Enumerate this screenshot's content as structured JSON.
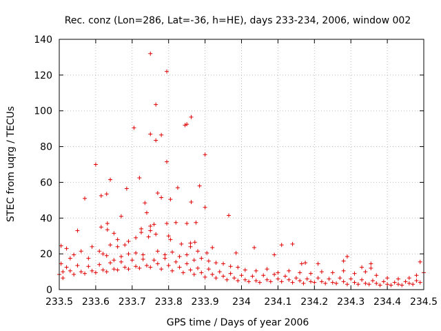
{
  "chart_data": {
    "type": "scatter",
    "title": "Rec. conz (Lon=286, Lat=-36, h=HE), days 233-234, 2006, window 002",
    "xlabel": "GPS time / Days of year 2006",
    "ylabel": "STEC from uqrg / TECUs",
    "xlim": [
      233.5,
      234.5
    ],
    "ylim": [
      0,
      140
    ],
    "x_ticks": [
      233.5,
      233.6,
      233.7,
      233.8,
      233.9,
      234.0,
      234.1,
      234.2,
      234.3,
      234.4,
      234.5
    ],
    "x_tick_labels": [
      "233.5",
      "233.6",
      "233.7",
      "233.8",
      "233.9",
      "234",
      "234.1",
      "234.2",
      "234.3",
      "234.4",
      "234.5"
    ],
    "y_ticks": [
      0,
      20,
      40,
      60,
      80,
      100,
      120,
      140
    ],
    "y_tick_labels": [
      "0",
      "20",
      "40",
      "60",
      "80",
      "100",
      "120",
      "140"
    ],
    "grid": true,
    "marker": "+",
    "marker_color": "#e00000",
    "series": [
      {
        "name": "STEC",
        "points": [
          [
            233.505,
            24.5
          ],
          [
            233.52,
            23.0
          ],
          [
            233.55,
            33.0
          ],
          [
            233.57,
            51.0
          ],
          [
            233.6,
            70.0
          ],
          [
            233.59,
            24.0
          ],
          [
            233.615,
            52.5
          ],
          [
            233.63,
            53.5
          ],
          [
            233.64,
            61.5
          ],
          [
            233.615,
            35.0
          ],
          [
            233.632,
            37.0
          ],
          [
            233.632,
            33.5
          ],
          [
            233.65,
            31.5
          ],
          [
            233.66,
            28.0
          ],
          [
            233.67,
            41.0
          ],
          [
            233.685,
            56.5
          ],
          [
            233.705,
            90.5
          ],
          [
            233.72,
            62.5
          ],
          [
            233.735,
            48.5
          ],
          [
            233.74,
            43.0
          ],
          [
            233.75,
            132.0
          ],
          [
            233.75,
            87.0
          ],
          [
            233.765,
            103.5
          ],
          [
            233.765,
            83.5
          ],
          [
            233.78,
            86.5
          ],
          [
            233.795,
            122.0
          ],
          [
            233.795,
            71.5
          ],
          [
            233.805,
            50.5
          ],
          [
            233.77,
            54.0
          ],
          [
            233.78,
            51.5
          ],
          [
            233.825,
            57.0
          ],
          [
            233.845,
            92.0
          ],
          [
            233.85,
            92.5
          ],
          [
            233.862,
            96.5
          ],
          [
            233.862,
            49.0
          ],
          [
            233.885,
            58.0
          ],
          [
            233.9,
            75.5
          ],
          [
            233.9,
            46.0
          ],
          [
            233.965,
            41.5
          ],
          [
            233.82,
            37.5
          ],
          [
            233.795,
            37.0
          ],
          [
            233.85,
            37.0
          ],
          [
            233.875,
            37.5
          ],
          [
            233.76,
            36.5
          ],
          [
            233.75,
            35.5
          ],
          [
            233.725,
            34.0
          ],
          [
            233.725,
            32.0
          ],
          [
            233.75,
            33.0
          ],
          [
            233.765,
            31.0
          ],
          [
            233.8,
            30.0
          ],
          [
            233.805,
            28.0
          ],
          [
            233.745,
            29.5
          ],
          [
            233.71,
            29.0
          ],
          [
            233.69,
            27.0
          ],
          [
            233.68,
            25.0
          ],
          [
            233.64,
            25.0
          ],
          [
            233.66,
            24.0
          ],
          [
            233.63,
            19.0
          ],
          [
            233.61,
            21.5
          ],
          [
            233.835,
            25.5
          ],
          [
            233.86,
            26.0
          ],
          [
            233.86,
            24.0
          ],
          [
            233.872,
            26.5
          ],
          [
            233.88,
            21.5
          ],
          [
            233.905,
            20.5
          ],
          [
            233.92,
            23.5
          ],
          [
            233.985,
            20.5
          ],
          [
            234.035,
            23.5
          ],
          [
            234.09,
            19.5
          ],
          [
            234.11,
            25.0
          ],
          [
            234.14,
            25.5
          ],
          [
            234.165,
            14.5
          ],
          [
            234.175,
            15.0
          ],
          [
            234.21,
            14.5
          ],
          [
            234.28,
            16.0
          ],
          [
            234.29,
            18.5
          ],
          [
            234.33,
            12.5
          ],
          [
            234.355,
            12.0
          ],
          [
            234.355,
            14.5
          ],
          [
            234.49,
            15.5
          ],
          [
            233.505,
            14.5
          ],
          [
            233.5,
            8.5
          ],
          [
            233.51,
            10.0
          ],
          [
            233.51,
            6.5
          ],
          [
            233.53,
            17.5
          ],
          [
            233.54,
            19.5
          ],
          [
            233.56,
            21.5
          ],
          [
            233.58,
            17.5
          ],
          [
            233.62,
            20.0
          ],
          [
            233.65,
            16.5
          ],
          [
            233.67,
            18.5
          ],
          [
            233.69,
            20.0
          ],
          [
            233.71,
            20.5
          ],
          [
            233.73,
            19.5
          ],
          [
            233.77,
            21.5
          ],
          [
            233.79,
            19.5
          ],
          [
            233.81,
            21.0
          ],
          [
            233.83,
            18.5
          ],
          [
            233.85,
            19.5
          ],
          [
            233.87,
            16.5
          ],
          [
            233.89,
            17.5
          ],
          [
            233.91,
            16.0
          ],
          [
            233.93,
            15.0
          ],
          [
            233.95,
            14.5
          ],
          [
            233.97,
            13.0
          ],
          [
            233.99,
            12.5
          ],
          [
            234.01,
            11.0
          ],
          [
            234.04,
            10.5
          ],
          [
            234.07,
            11.5
          ],
          [
            234.1,
            9.5
          ],
          [
            234.13,
            10.5
          ],
          [
            234.16,
            9.5
          ],
          [
            234.19,
            9.0
          ],
          [
            234.22,
            10.0
          ],
          [
            234.25,
            9.5
          ],
          [
            234.28,
            10.5
          ],
          [
            234.31,
            9.0
          ],
          [
            234.34,
            10.0
          ],
          [
            234.37,
            8.0
          ],
          [
            234.4,
            6.5
          ],
          [
            234.43,
            6.0
          ],
          [
            234.46,
            6.5
          ],
          [
            234.48,
            8.0
          ],
          [
            234.5,
            9.5
          ],
          [
            233.52,
            12.5
          ],
          [
            233.55,
            13.5
          ],
          [
            233.58,
            13.0
          ],
          [
            233.61,
            14.0
          ],
          [
            233.64,
            15.0
          ],
          [
            233.67,
            15.5
          ],
          [
            233.7,
            16.5
          ],
          [
            233.73,
            17.0
          ],
          [
            233.76,
            16.5
          ],
          [
            233.79,
            17.5
          ],
          [
            233.82,
            15.5
          ],
          [
            233.85,
            14.5
          ],
          [
            233.88,
            12.0
          ],
          [
            233.91,
            11.5
          ],
          [
            233.94,
            10.0
          ],
          [
            233.97,
            9.0
          ],
          [
            234.0,
            8.0
          ],
          [
            234.03,
            7.5
          ],
          [
            234.06,
            8.0
          ],
          [
            234.09,
            8.5
          ],
          [
            234.12,
            7.5
          ],
          [
            234.15,
            6.5
          ],
          [
            234.18,
            6.0
          ],
          [
            234.21,
            6.5
          ],
          [
            234.24,
            6.0
          ],
          [
            234.27,
            6.5
          ],
          [
            234.3,
            6.0
          ],
          [
            234.33,
            5.5
          ],
          [
            234.36,
            5.0
          ],
          [
            234.39,
            4.5
          ],
          [
            234.42,
            4.0
          ],
          [
            234.45,
            4.5
          ],
          [
            234.48,
            5.0
          ],
          [
            233.53,
            10.5
          ],
          [
            233.56,
            10.0
          ],
          [
            233.59,
            10.5
          ],
          [
            233.62,
            11.0
          ],
          [
            233.65,
            11.5
          ],
          [
            233.68,
            12.5
          ],
          [
            233.71,
            13.0
          ],
          [
            233.74,
            13.5
          ],
          [
            233.77,
            14.5
          ],
          [
            233.8,
            13.5
          ],
          [
            233.83,
            12.5
          ],
          [
            233.86,
            11.0
          ],
          [
            233.89,
            9.5
          ],
          [
            233.92,
            8.5
          ],
          [
            233.95,
            7.5
          ],
          [
            233.98,
            6.5
          ],
          [
            234.01,
            5.5
          ],
          [
            234.04,
            5.0
          ],
          [
            234.07,
            5.5
          ],
          [
            234.1,
            6.0
          ],
          [
            234.13,
            5.5
          ],
          [
            234.16,
            5.0
          ],
          [
            234.19,
            4.5
          ],
          [
            234.22,
            4.5
          ],
          [
            234.25,
            4.0
          ],
          [
            234.28,
            4.5
          ],
          [
            234.31,
            4.0
          ],
          [
            234.34,
            3.5
          ],
          [
            234.37,
            3.5
          ],
          [
            234.4,
            3.0
          ],
          [
            234.43,
            3.0
          ],
          [
            234.46,
            3.5
          ],
          [
            234.49,
            4.0
          ],
          [
            233.54,
            8.5
          ],
          [
            233.57,
            9.0
          ],
          [
            233.6,
            9.5
          ],
          [
            233.63,
            10.0
          ],
          [
            233.66,
            11.0
          ],
          [
            233.69,
            11.5
          ],
          [
            233.72,
            12.0
          ],
          [
            233.75,
            12.5
          ],
          [
            233.78,
            11.5
          ],
          [
            233.81,
            10.5
          ],
          [
            233.84,
            9.5
          ],
          [
            233.87,
            8.5
          ],
          [
            233.9,
            7.0
          ],
          [
            233.93,
            6.5
          ],
          [
            233.96,
            5.5
          ],
          [
            233.99,
            5.0
          ],
          [
            234.02,
            4.5
          ],
          [
            234.05,
            4.0
          ],
          [
            234.08,
            4.5
          ],
          [
            234.11,
            4.5
          ],
          [
            234.14,
            4.0
          ],
          [
            234.17,
            3.5
          ],
          [
            234.2,
            4.0
          ],
          [
            234.23,
            3.5
          ],
          [
            234.26,
            3.5
          ],
          [
            234.29,
            3.0
          ],
          [
            234.32,
            3.0
          ],
          [
            234.35,
            3.0
          ],
          [
            234.38,
            2.5
          ],
          [
            234.41,
            2.5
          ],
          [
            234.44,
            2.5
          ],
          [
            234.47,
            3.0
          ]
        ]
      }
    ]
  }
}
